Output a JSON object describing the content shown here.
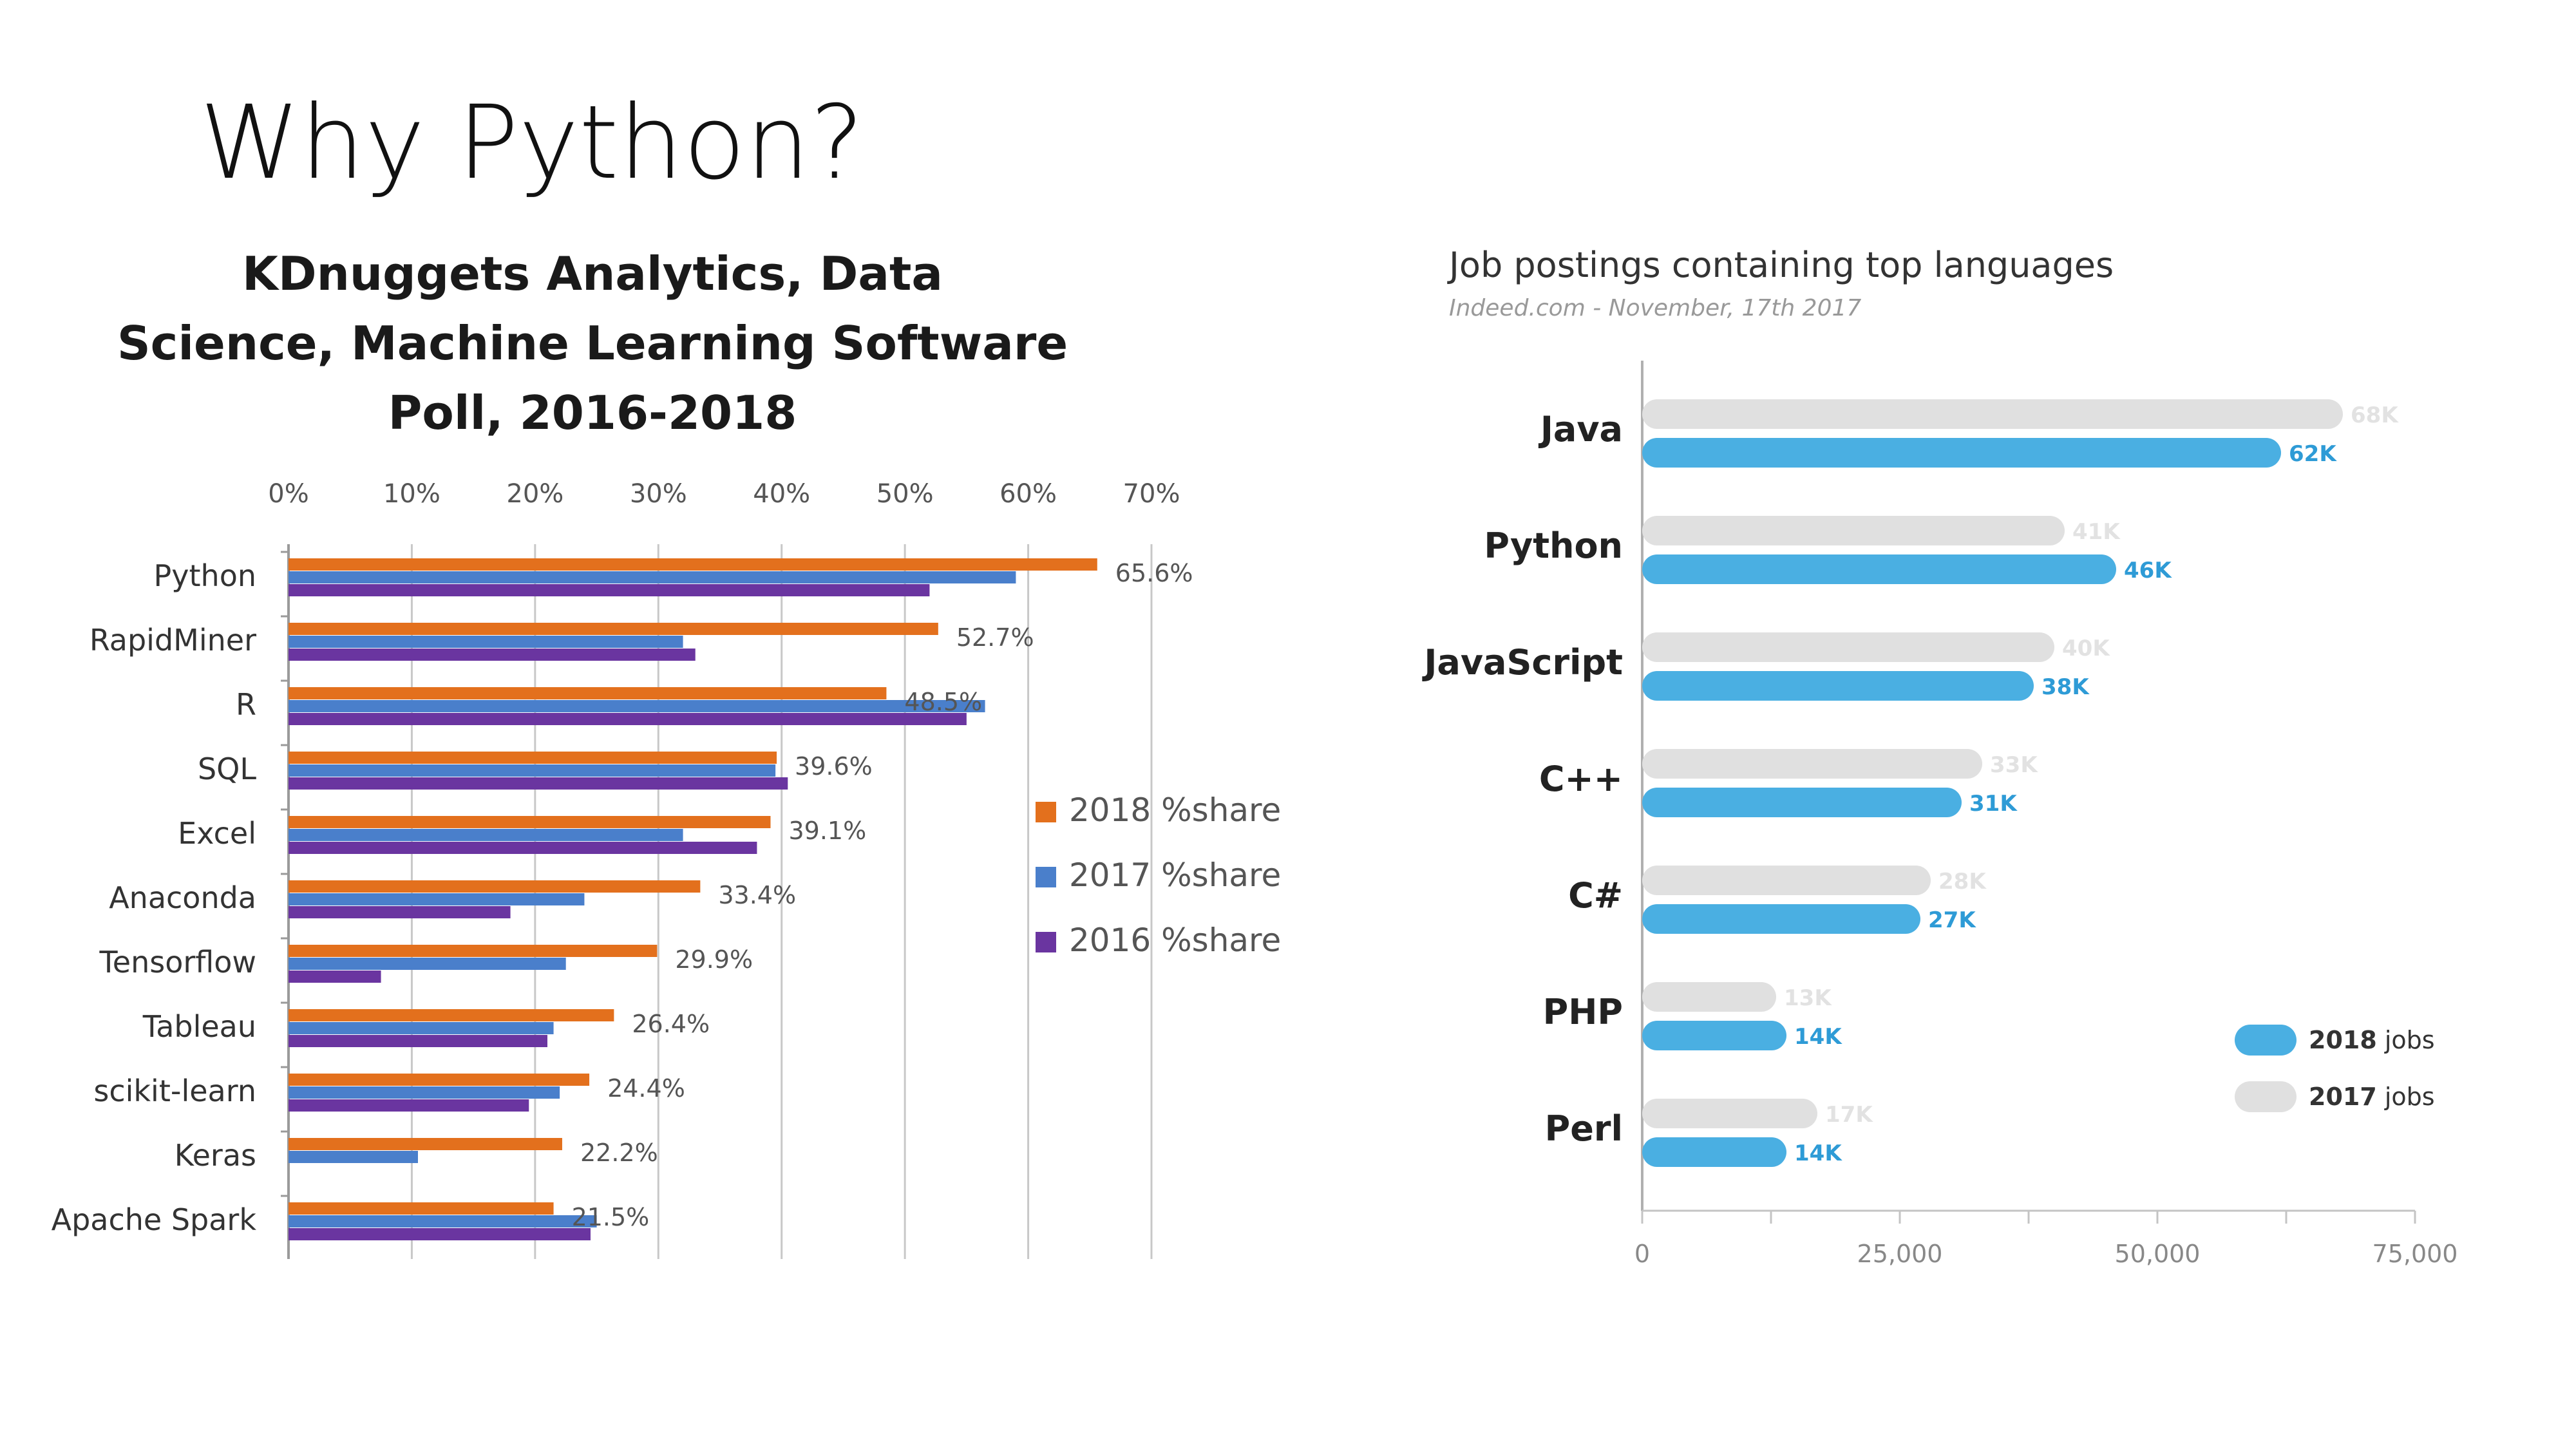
{
  "slide": {
    "title": "Why Python?"
  },
  "chart_data": [
    {
      "type": "bar",
      "orientation": "horizontal",
      "title_lines": [
        "KDnuggets Analytics, Data",
        "Science, Machine Learning Software",
        "Poll, 2016-2018"
      ],
      "categories": [
        "Python",
        "RapidMiner",
        "R",
        "SQL",
        "Excel",
        "Anaconda",
        "Tensorflow",
        "Tableau",
        "scikit-learn",
        "Keras",
        "Apache Spark"
      ],
      "series": [
        {
          "name": "2018 %share",
          "color": "#e3701d",
          "values": [
            65.6,
            52.7,
            48.5,
            39.6,
            39.1,
            33.4,
            29.9,
            26.4,
            24.4,
            22.2,
            21.5
          ]
        },
        {
          "name": "2017 %share",
          "color": "#4a7fcb",
          "values": [
            59.0,
            32.0,
            56.5,
            39.5,
            32.0,
            24.0,
            22.5,
            21.5,
            22.0,
            10.5,
            25.0
          ]
        },
        {
          "name": "2016 %share",
          "color": "#6a35a0",
          "values": [
            52.0,
            33.0,
            55.0,
            40.5,
            38.0,
            18.0,
            7.5,
            21.0,
            19.5,
            0,
            24.5
          ]
        }
      ],
      "data_labels": [
        "65.6%",
        "52.7%",
        "48.5%",
        "39.6%",
        "39.1%",
        "33.4%",
        "29.9%",
        "26.4%",
        "24.4%",
        "22.2%",
        "21.5%"
      ],
      "xticks": [
        "0%",
        "10%",
        "20%",
        "30%",
        "40%",
        "50%",
        "60%",
        "70%"
      ],
      "xlim": [
        0,
        70
      ],
      "grid": true,
      "legend": "right"
    },
    {
      "type": "bar",
      "orientation": "horizontal",
      "title": "Job postings containing top languages",
      "subtitle": "Indeed.com - November, 17th 2017",
      "categories": [
        "Java",
        "Python",
        "JavaScript",
        "C++",
        "C#",
        "PHP",
        "Perl"
      ],
      "series": [
        {
          "name": "2017",
          "legend_bold": "2017",
          "legend_rest": " jobs",
          "color": "#e0e0e0",
          "label_color": "#e2e2e2",
          "values": [
            68000,
            41000,
            40000,
            33000,
            28000,
            13000,
            17000
          ],
          "labels": [
            "68K",
            "41K",
            "40K",
            "33K",
            "28K",
            "13K",
            "17K"
          ]
        },
        {
          "name": "2018",
          "legend_bold": "2018",
          "legend_rest": " jobs",
          "color": "#4aafe2",
          "label_color": "#2e9bd6",
          "values": [
            62000,
            46000,
            38000,
            31000,
            27000,
            14000,
            14000
          ],
          "labels": [
            "62K",
            "46K",
            "38K",
            "31K",
            "27K",
            "14K",
            "14K"
          ]
        }
      ],
      "xticks": [
        "0",
        "25,000",
        "50,000",
        "75,000"
      ],
      "xlim": [
        0,
        75000
      ],
      "legend": "bottom-right"
    }
  ]
}
